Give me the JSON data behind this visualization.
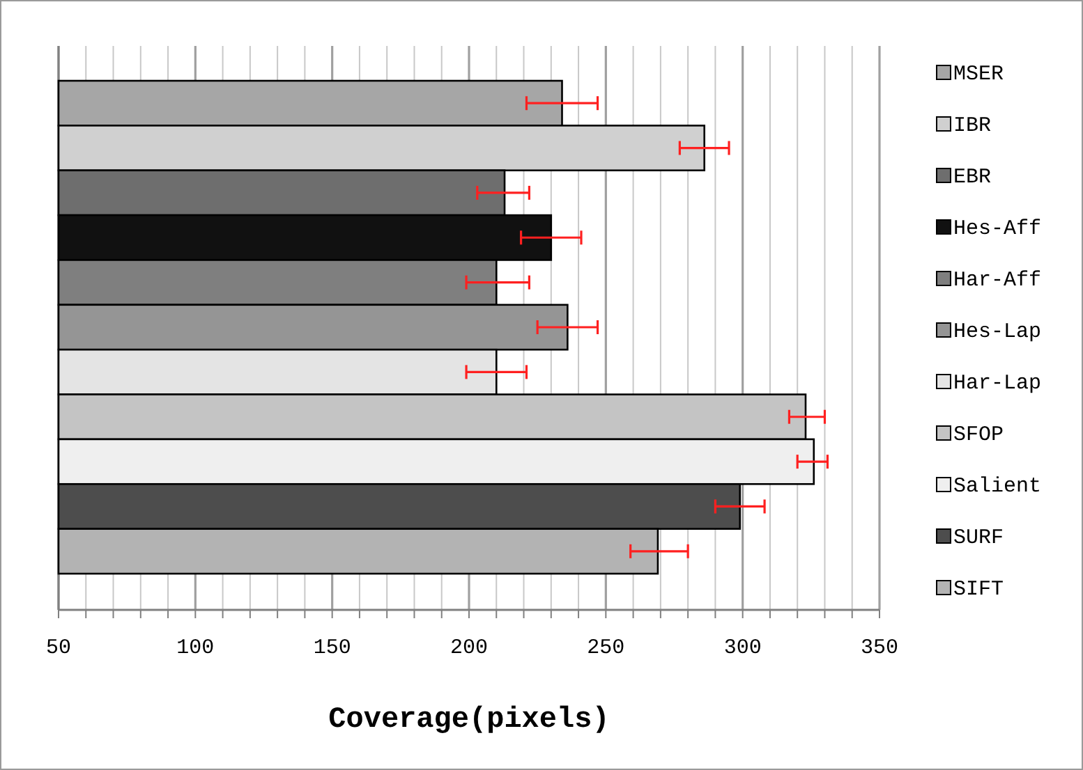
{
  "chart_data": {
    "type": "bar",
    "orientation": "horizontal",
    "xlabel": "Coverage(pixels)",
    "categories": [
      null,
      null,
      null,
      null,
      null,
      null,
      null,
      null,
      null,
      null,
      null
    ],
    "xlim": [
      50,
      350
    ],
    "xticks": [
      50,
      {
        "value": 60,
        "label": null
      },
      {
        "value": 70,
        "label": null
      },
      {
        "value": 80,
        "label": null
      },
      {
        "value": 90,
        "label": null
      },
      100,
      {
        "value": 110,
        "label": null
      },
      {
        "value": 120,
        "label": null
      },
      {
        "value": 130,
        "label": null
      },
      {
        "value": 140,
        "label": null
      },
      150,
      {
        "value": 160,
        "label": null
      },
      {
        "value": 170,
        "label": null
      },
      {
        "value": 180,
        "label": null
      },
      {
        "value": 190,
        "label": null
      },
      200,
      {
        "value": 210,
        "label": null
      },
      {
        "value": 220,
        "label": null
      },
      {
        "value": 230,
        "label": null
      },
      {
        "value": 240,
        "label": null
      },
      250,
      {
        "value": 260,
        "label": null
      },
      {
        "value": 270,
        "label": null
      },
      {
        "value": 280,
        "label": null
      },
      {
        "value": 290,
        "label": null
      },
      300,
      {
        "value": 310,
        "label": null
      },
      {
        "value": 320,
        "label": null
      },
      {
        "value": 330,
        "label": null
      },
      {
        "value": 340,
        "label": null
      },
      350
    ],
    "grid": "x",
    "legend": "right",
    "stacked": true,
    "series": [
      {
        "name": "MSER",
        "color": "#a6a6a6",
        "values": [
          234,
          null,
          null,
          null,
          null,
          null,
          null,
          null,
          null,
          null,
          null
        ],
        "errors": [
          [
            221,
            247
          ],
          null,
          null,
          null,
          null,
          null,
          null,
          null,
          null,
          null,
          null
        ]
      },
      {
        "name": "IBR",
        "color": "#d0d0d0",
        "values": [
          null,
          286,
          null,
          null,
          null,
          null,
          null,
          null,
          null,
          null,
          null
        ],
        "errors": [
          null,
          [
            277,
            295
          ],
          null,
          null,
          null,
          null,
          null,
          null,
          null,
          null,
          null
        ]
      },
      {
        "name": "EBR",
        "color": "#6e6e6e",
        "values": [
          null,
          null,
          213,
          null,
          null,
          null,
          null,
          null,
          null,
          null,
          null
        ],
        "errors": [
          null,
          null,
          [
            203,
            222
          ],
          null,
          null,
          null,
          null,
          null,
          null,
          null,
          null
        ]
      },
      {
        "name": "Hes-Aff",
        "color": "#111111",
        "values": [
          null,
          null,
          null,
          230,
          null,
          null,
          null,
          null,
          null,
          null,
          null
        ],
        "errors": [
          null,
          null,
          null,
          [
            219,
            241
          ],
          null,
          null,
          null,
          null,
          null,
          null,
          null
        ]
      },
      {
        "name": "Har-Aff",
        "color": "#7f7f7f",
        "values": [
          null,
          null,
          null,
          null,
          210,
          null,
          null,
          null,
          null,
          null,
          null
        ],
        "errors": [
          null,
          null,
          null,
          null,
          [
            199,
            222
          ],
          null,
          null,
          null,
          null,
          null,
          null
        ]
      },
      {
        "name": "Hes-Lap",
        "color": "#959595",
        "values": [
          null,
          null,
          null,
          null,
          null,
          236,
          null,
          null,
          null,
          null,
          null
        ],
        "errors": [
          null,
          null,
          null,
          null,
          null,
          [
            225,
            247
          ],
          null,
          null,
          null,
          null,
          null
        ]
      },
      {
        "name": "Har-Lap",
        "color": "#e4e4e4",
        "values": [
          null,
          null,
          null,
          null,
          null,
          null,
          210,
          null,
          null,
          null,
          null
        ],
        "errors": [
          null,
          null,
          null,
          null,
          null,
          null,
          [
            199,
            221
          ],
          null,
          null,
          null,
          null
        ]
      },
      {
        "name": "SFOP",
        "color": "#c4c4c4",
        "values": [
          null,
          null,
          null,
          null,
          null,
          null,
          null,
          323,
          null,
          null,
          null
        ],
        "errors": [
          null,
          null,
          null,
          null,
          null,
          null,
          null,
          [
            317,
            330
          ],
          null,
          null,
          null
        ]
      },
      {
        "name": "Salient",
        "color": "#efefef",
        "values": [
          null,
          null,
          null,
          null,
          null,
          null,
          null,
          null,
          326,
          null,
          null
        ],
        "errors": [
          null,
          null,
          null,
          null,
          null,
          null,
          null,
          null,
          [
            320,
            331
          ],
          null,
          null
        ]
      },
      {
        "name": "SURF",
        "color": "#4d4d4d",
        "values": [
          null,
          null,
          null,
          null,
          null,
          null,
          null,
          null,
          null,
          299,
          null
        ],
        "errors": [
          null,
          null,
          null,
          null,
          null,
          null,
          null,
          null,
          null,
          [
            290,
            308
          ],
          null
        ]
      },
      {
        "name": "SIFT",
        "color": "#b3b3b3",
        "values": [
          null,
          null,
          null,
          null,
          null,
          null,
          null,
          null,
          null,
          null,
          269
        ],
        "errors": [
          null,
          null,
          null,
          null,
          null,
          null,
          null,
          null,
          null,
          null,
          [
            259,
            280
          ]
        ]
      }
    ]
  }
}
